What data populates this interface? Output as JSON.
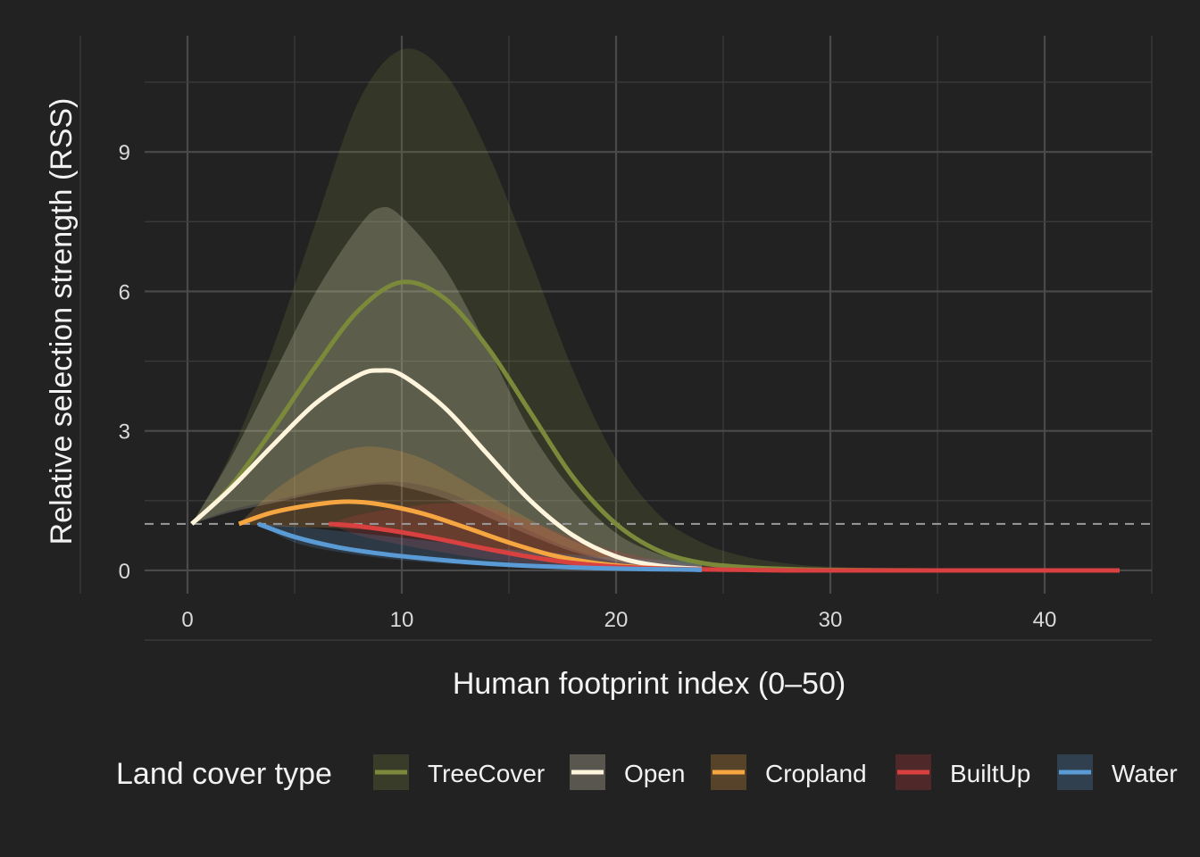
{
  "chart_data": {
    "type": "line",
    "xlabel": "Human footprint index (0–50)",
    "ylabel": "Relative selection strength (RSS)",
    "xlim": [
      -2,
      45
    ],
    "ylim": [
      -0.5,
      11.5
    ],
    "x_ticks": [
      0,
      10,
      20,
      30,
      40
    ],
    "x_tick_labels": [
      "0",
      "10",
      "20",
      "30",
      "40"
    ],
    "y_ticks": [
      0,
      3,
      6,
      9
    ],
    "y_tick_labels": [
      "0",
      "3",
      "6",
      "9"
    ],
    "grid": true,
    "reference_line": {
      "y": 1,
      "style": "dashed"
    },
    "legend": {
      "title": "Land cover type",
      "position": "bottom"
    },
    "series": [
      {
        "name": "TreeCover",
        "color": "#7b8a3a",
        "x": [
          0.2,
          2,
          4,
          6,
          8,
          10,
          12,
          14,
          16,
          18,
          20,
          22,
          24,
          26,
          28,
          30,
          35,
          40,
          43.5
        ],
        "y": [
          1.0,
          1.8,
          3.05,
          4.4,
          5.6,
          6.2,
          5.85,
          4.8,
          3.4,
          2.0,
          1.0,
          0.42,
          0.16,
          0.07,
          0.03,
          0.01,
          0.0,
          0.0,
          0.0
        ],
        "lower": [
          1.0,
          1.3,
          1.5,
          1.7,
          1.85,
          1.9,
          1.7,
          1.3,
          0.85,
          0.45,
          0.2,
          0.08,
          0.03,
          0.01,
          0.0,
          0.0,
          0.0,
          0.0,
          0.0
        ],
        "upper": [
          1.0,
          2.5,
          4.8,
          7.5,
          10.1,
          11.2,
          10.7,
          9.0,
          6.7,
          4.3,
          2.4,
          1.2,
          0.6,
          0.3,
          0.15,
          0.08,
          0.02,
          0.0,
          0.0
        ]
      },
      {
        "name": "Open",
        "color": "#fff5dc",
        "x": [
          0.2,
          2,
          4,
          6,
          8,
          9,
          10,
          12,
          14,
          16,
          18,
          20,
          22,
          24
        ],
        "y": [
          1.0,
          1.75,
          2.7,
          3.6,
          4.2,
          4.3,
          4.2,
          3.5,
          2.5,
          1.5,
          0.75,
          0.3,
          0.1,
          0.03
        ],
        "lower": [
          1.0,
          1.25,
          1.45,
          1.65,
          1.8,
          1.85,
          1.8,
          1.55,
          1.15,
          0.75,
          0.4,
          0.18,
          0.07,
          0.02
        ],
        "upper": [
          1.0,
          2.4,
          4.2,
          6.0,
          7.4,
          7.8,
          7.6,
          6.5,
          4.8,
          3.0,
          1.7,
          0.8,
          0.35,
          0.12
        ]
      },
      {
        "name": "Cropland",
        "color": "#f5a640",
        "x": [
          2.4,
          4,
          6,
          7.5,
          9,
          11,
          13,
          15,
          17,
          19,
          21,
          23,
          24
        ],
        "y": [
          1.0,
          1.25,
          1.42,
          1.48,
          1.42,
          1.22,
          0.92,
          0.6,
          0.33,
          0.16,
          0.07,
          0.03,
          0.02
        ],
        "lower": [
          1.0,
          0.95,
          0.92,
          0.9,
          0.85,
          0.7,
          0.5,
          0.32,
          0.17,
          0.08,
          0.03,
          0.01,
          0.0
        ],
        "upper": [
          1.0,
          1.7,
          2.3,
          2.6,
          2.65,
          2.4,
          1.9,
          1.35,
          0.85,
          0.45,
          0.2,
          0.08,
          0.05
        ]
      },
      {
        "name": "BuiltUp",
        "color": "#d94040",
        "x": [
          6.6,
          8,
          10,
          12,
          14,
          16,
          18,
          20,
          22,
          24,
          26,
          28,
          30,
          35,
          40,
          43.5
        ],
        "y": [
          1.0,
          0.95,
          0.82,
          0.65,
          0.46,
          0.29,
          0.16,
          0.08,
          0.04,
          0.02,
          0.01,
          0.0,
          0.0,
          0.0,
          0.0,
          0.0
        ],
        "lower": [
          1.0,
          0.75,
          0.55,
          0.38,
          0.24,
          0.14,
          0.07,
          0.03,
          0.01,
          0.0,
          0.0,
          0.0,
          0.0,
          0.0,
          0.0,
          0.0
        ],
        "upper": [
          1.0,
          1.2,
          1.35,
          1.45,
          1.35,
          1.05,
          0.7,
          0.42,
          0.22,
          0.1,
          0.05,
          0.02,
          0.01,
          0.0,
          0.0,
          0.0
        ]
      },
      {
        "name": "Water",
        "color": "#5b9bd5",
        "x": [
          3.3,
          5,
          7,
          9,
          11,
          13,
          15,
          17,
          19,
          21,
          23,
          24
        ],
        "y": [
          1.0,
          0.72,
          0.5,
          0.36,
          0.26,
          0.18,
          0.12,
          0.08,
          0.05,
          0.03,
          0.02,
          0.01
        ],
        "lower": [
          1.0,
          0.6,
          0.4,
          0.27,
          0.18,
          0.12,
          0.08,
          0.05,
          0.03,
          0.02,
          0.01,
          0.0
        ],
        "upper": [
          1.0,
          0.95,
          0.85,
          0.75,
          0.65,
          0.55,
          0.45,
          0.38,
          0.3,
          0.25,
          0.2,
          0.15
        ]
      }
    ]
  }
}
